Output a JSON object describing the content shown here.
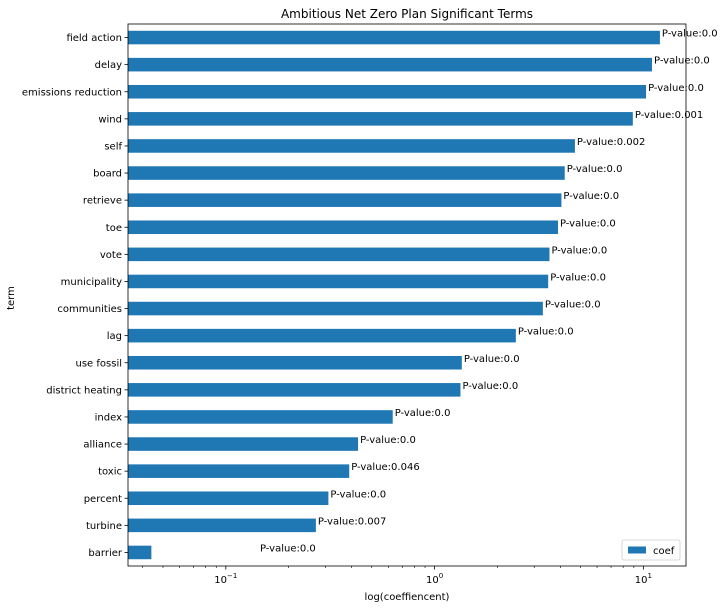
{
  "chart_data": {
    "type": "bar",
    "orientation": "horizontal",
    "title": "Ambitious Net Zero Plan Significant Terms",
    "xlabel": "log(coeffiencent)",
    "ylabel": "term",
    "xscale": "log",
    "xlim": [
      0.034,
      16
    ],
    "xticks": [
      {
        "value": 0.1,
        "base": "10",
        "exp": "−1"
      },
      {
        "value": 1,
        "base": "10",
        "exp": "0"
      },
      {
        "value": 10,
        "base": "10",
        "exp": "1"
      }
    ],
    "grid": false,
    "legend": {
      "position": "lower-right",
      "entries": [
        "coef"
      ]
    },
    "bar_color": "#1f77b4",
    "categories": [
      "field action",
      "delay",
      "emissions reduction",
      "wind",
      "self",
      "board",
      "retrieve",
      "toe",
      "vote",
      "municipality",
      "communities",
      "lag",
      "use fossil",
      "district heating",
      "index",
      "alliance",
      "toxic",
      "percent",
      "turbine",
      "barrier"
    ],
    "series": [
      {
        "name": "coef",
        "values": [
          12.0,
          11.0,
          10.3,
          8.9,
          4.7,
          4.2,
          4.05,
          3.9,
          3.55,
          3.5,
          3.3,
          2.45,
          1.35,
          1.33,
          0.63,
          0.43,
          0.39,
          0.31,
          0.27,
          0.044
        ],
        "labels": [
          "P-value:0.0",
          "P-value:0.0",
          "P-value:0.0",
          "P-value:0.001",
          "P-value:0.002",
          "P-value:0.0",
          "P-value:0.0",
          "P-value:0.0",
          "P-value:0.0",
          "P-value:0.0",
          "P-value:0.0",
          "P-value:0.0",
          "P-value:0.0",
          "P-value:0.0",
          "P-value:0.0",
          "P-value:0.0",
          "P-value:0.046",
          "P-value:0.0",
          "P-value:0.007",
          "P-value:0.0"
        ]
      }
    ]
  }
}
